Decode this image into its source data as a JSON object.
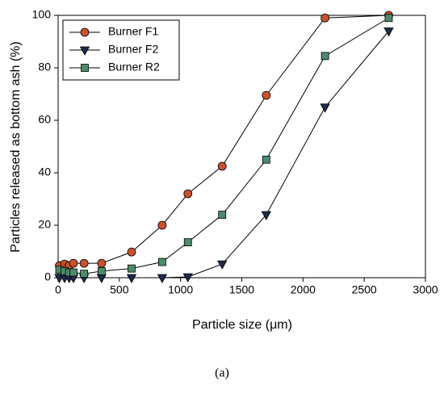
{
  "chart_data": {
    "type": "line",
    "x_label": "Particle size (μm)",
    "y_label": "Particles released as bottom ash (%)",
    "caption": "(a)",
    "x": [
      10,
      53,
      90,
      125,
      212,
      355,
      600,
      850,
      1060,
      1340,
      1700,
      2180,
      2700
    ],
    "series": [
      {
        "name": "Burner F1",
        "color": "#c8512e",
        "marker": "circle",
        "values": [
          4.6,
          5.2,
          4.6,
          5.5,
          5.5,
          5.5,
          9.8,
          20,
          32,
          42.5,
          69.5,
          99,
          100
        ]
      },
      {
        "name": "Burner F2",
        "color": "#1e2c4a",
        "marker": "triangle",
        "values": [
          0,
          0,
          0,
          0,
          0,
          0,
          0,
          0,
          0.3,
          5.2,
          24,
          65,
          94
        ]
      },
      {
        "name": "Burner R2",
        "color": "#4c8b6c",
        "marker": "square",
        "values": [
          3,
          2.5,
          2,
          2,
          1.5,
          2.5,
          3.5,
          6,
          13.5,
          24,
          45,
          84.5,
          99
        ]
      }
    ],
    "xlim": [
      0,
      3000
    ],
    "xticks": [
      0,
      500,
      1000,
      1500,
      2000,
      2500,
      3000
    ],
    "ylim": [
      0,
      100
    ],
    "yticks": [
      0,
      20,
      40,
      60,
      80,
      100
    ],
    "legend": "upper-left"
  }
}
